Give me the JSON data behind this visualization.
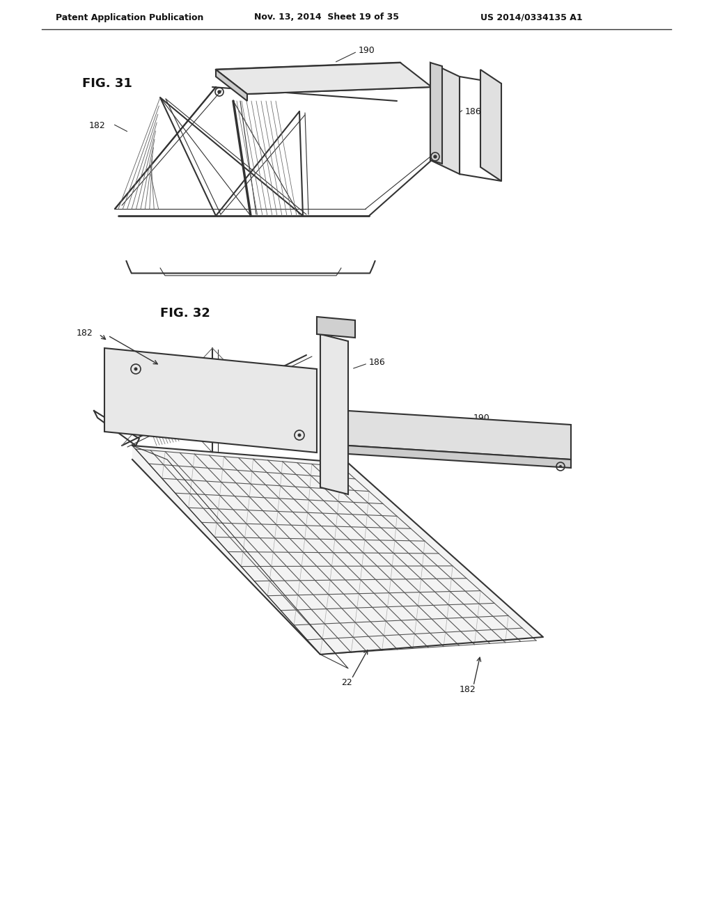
{
  "bg_color": "#ffffff",
  "header_line1": "Patent Application Publication",
  "header_line2": "Nov. 13, 2014  Sheet 19 of 35",
  "header_line3": "US 2014/0334135 A1",
  "fig31_label": "FIG. 31",
  "fig32_label": "FIG. 32",
  "labels": {
    "190_1": "190",
    "186_1": "186",
    "182_1": "182",
    "182_2": "182",
    "186_2": "186",
    "190_2": "190",
    "22": "22",
    "182_3": "182",
    "182_4": "182"
  },
  "line_color": "#333333",
  "dark_fill": "#555555",
  "hatch_color": "#444444"
}
